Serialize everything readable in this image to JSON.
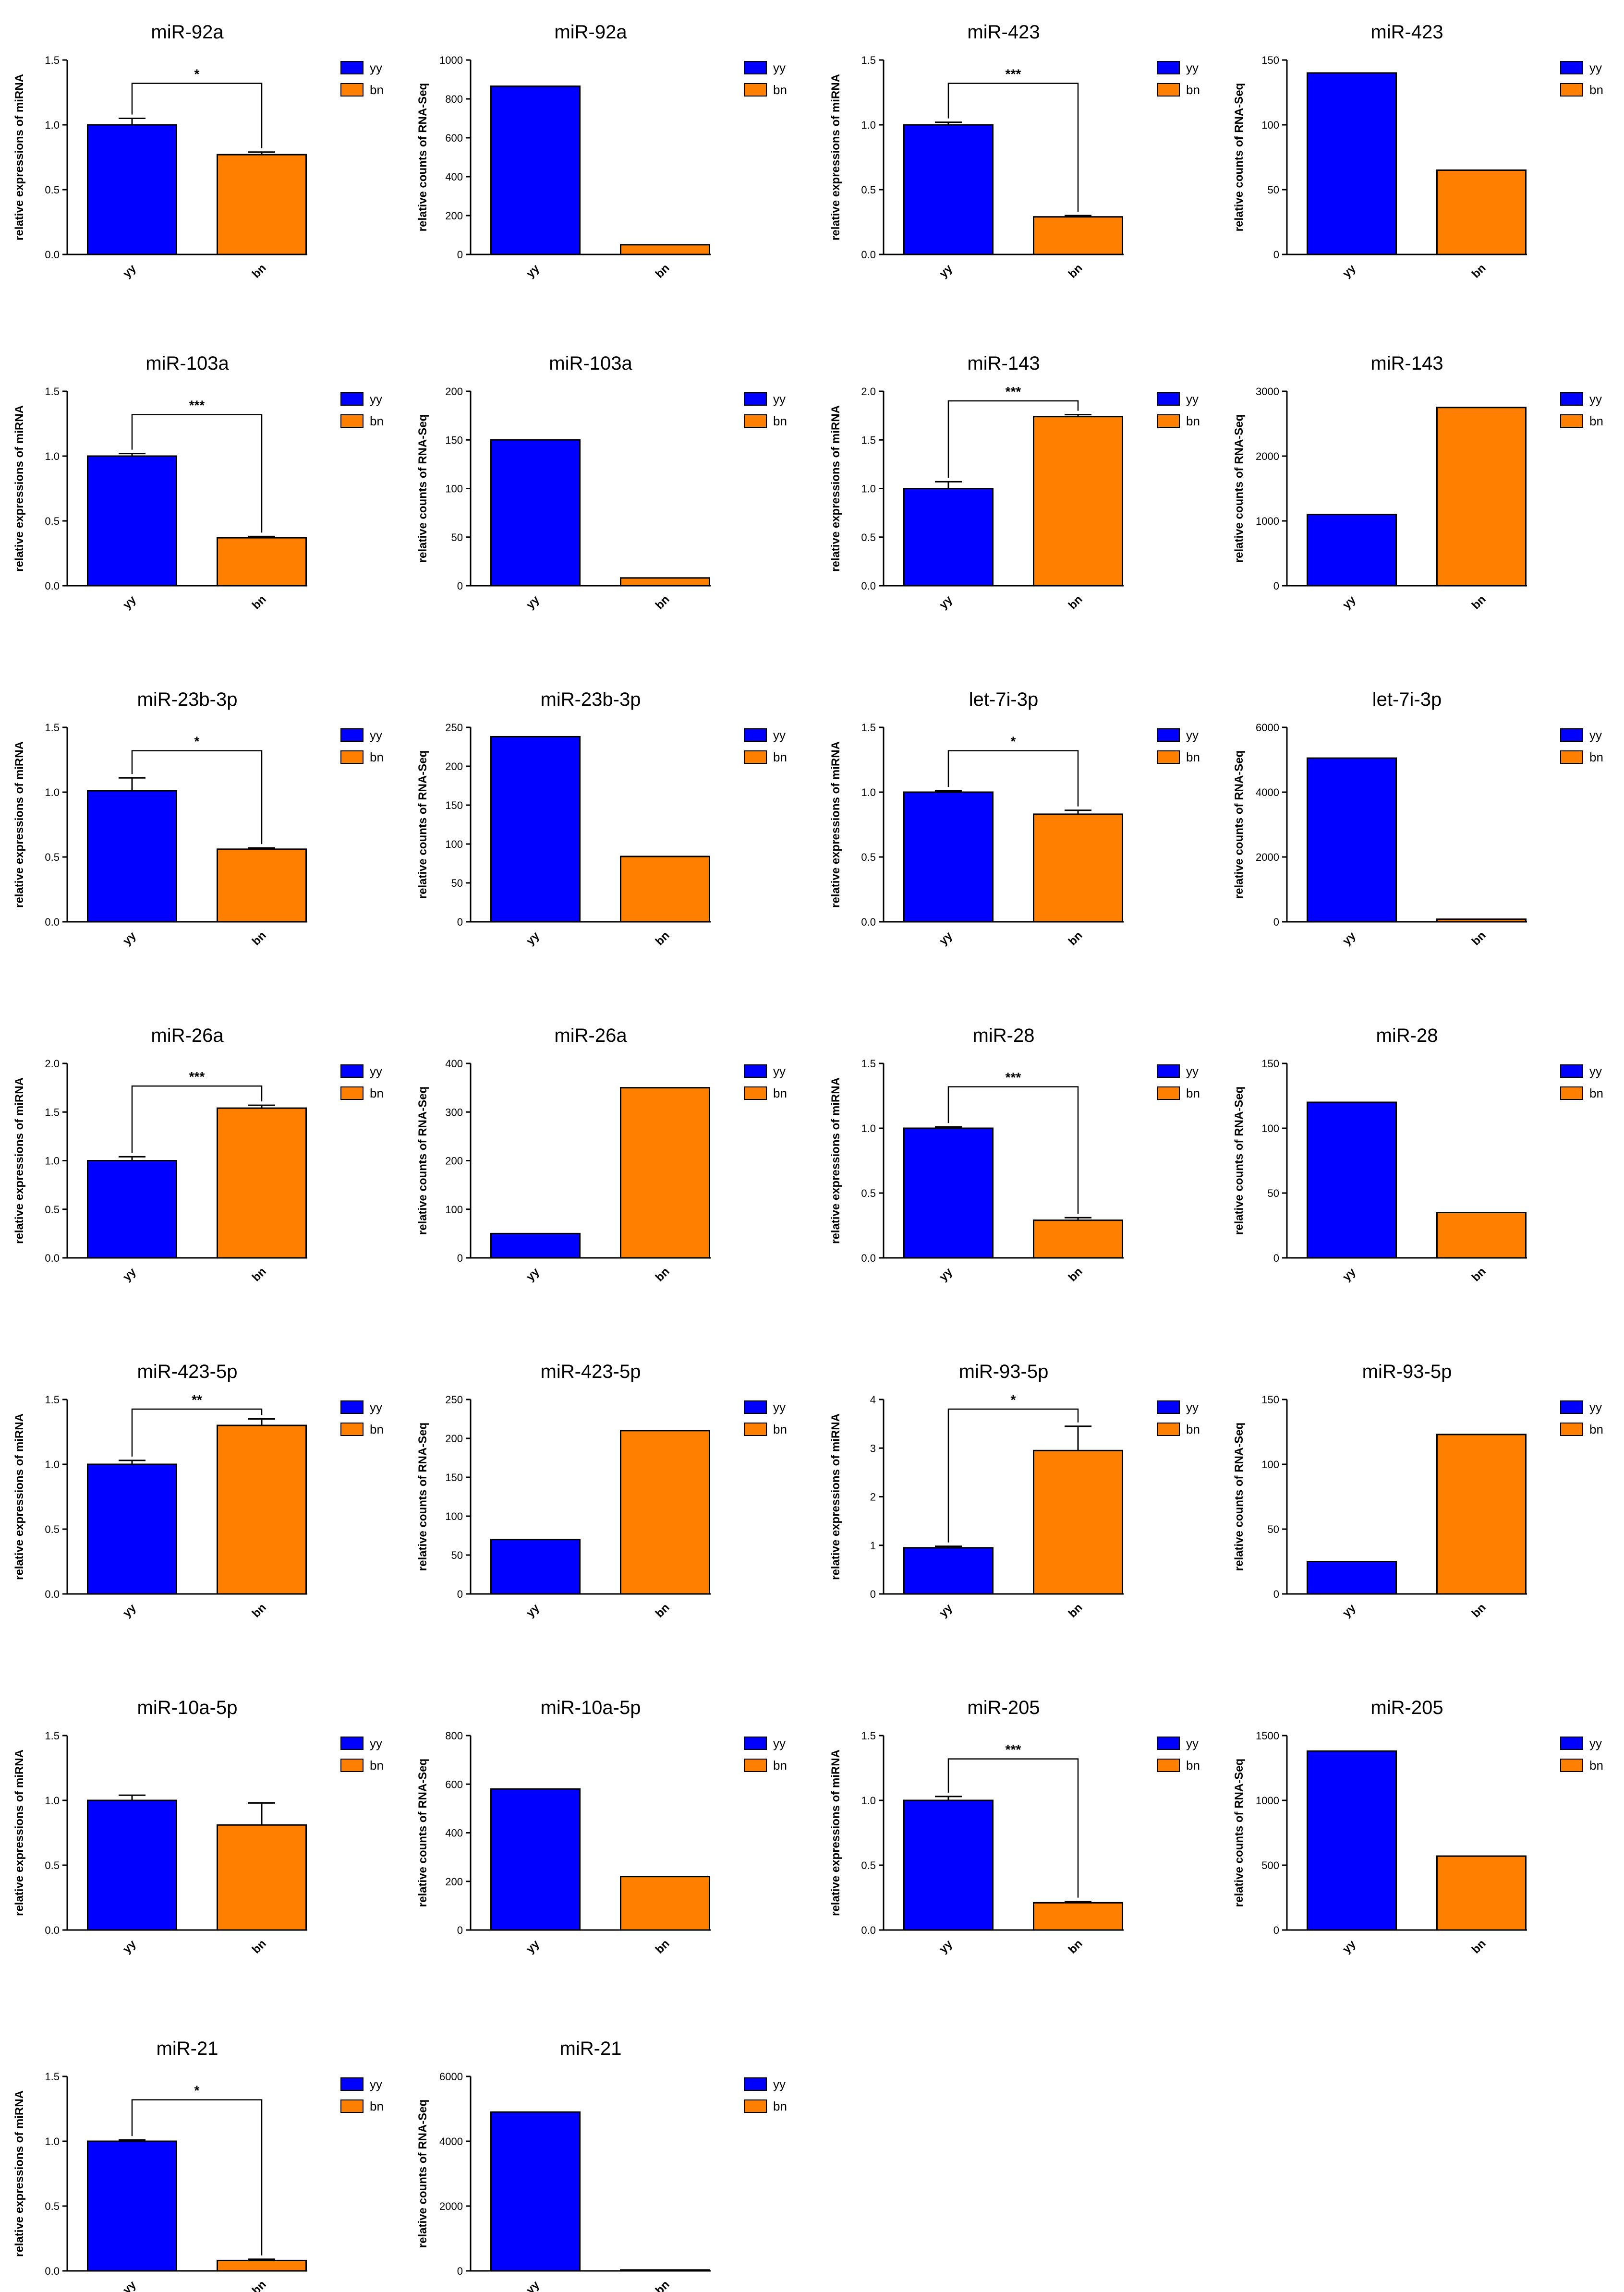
{
  "groups": [
    "yy",
    "bn"
  ],
  "colors": {
    "yy": "#0000ff",
    "bn": "#ff8000"
  },
  "chart_data": [
    {
      "type": "bar",
      "title": "miR-92a",
      "ylabel": "relative expressions of miRNA",
      "categories": [
        "yy",
        "bn"
      ],
      "values": [
        1.0,
        0.77
      ],
      "errors": [
        0.05,
        0.02
      ],
      "significance": "*",
      "ylim": [
        0,
        1.5
      ],
      "yticks": [
        "0.0",
        "0.5",
        "1.0",
        "1.5"
      ],
      "legend": [
        "yy",
        "bn"
      ]
    },
    {
      "type": "bar",
      "title": "miR-92a",
      "ylabel": "relative counts of RNA-Seq",
      "categories": [
        "yy",
        "bn"
      ],
      "values": [
        865,
        50
      ],
      "errors": [
        0,
        0
      ],
      "significance": "",
      "ylim": [
        0,
        1000
      ],
      "yticks": [
        "0",
        "200",
        "400",
        "600",
        "800",
        "1000"
      ],
      "legend": [
        "yy",
        "bn"
      ]
    },
    {
      "type": "bar",
      "title": "miR-423",
      "ylabel": "relative expressions of miRNA",
      "categories": [
        "yy",
        "bn"
      ],
      "values": [
        1.0,
        0.29
      ],
      "errors": [
        0.02,
        0.01
      ],
      "significance": "***",
      "ylim": [
        0,
        1.5
      ],
      "yticks": [
        "0.0",
        "0.5",
        "1.0",
        "1.5"
      ],
      "legend": [
        "yy",
        "bn"
      ]
    },
    {
      "type": "bar",
      "title": "miR-423",
      "ylabel": "relative counts of RNA-Seq",
      "categories": [
        "yy",
        "bn"
      ],
      "values": [
        140,
        65
      ],
      "errors": [
        0,
        0
      ],
      "significance": "",
      "ylim": [
        0,
        150
      ],
      "yticks": [
        "0",
        "50",
        "100",
        "150"
      ],
      "legend": [
        "yy",
        "bn"
      ]
    },
    {
      "type": "bar",
      "title": "miR-103a",
      "ylabel": "relative expressions of miRNA",
      "categories": [
        "yy",
        "bn"
      ],
      "values": [
        1.0,
        0.37
      ],
      "errors": [
        0.02,
        0.01
      ],
      "significance": "***",
      "ylim": [
        0,
        1.5
      ],
      "yticks": [
        "0.0",
        "0.5",
        "1.0",
        "1.5"
      ],
      "legend": [
        "yy",
        "bn"
      ]
    },
    {
      "type": "bar",
      "title": "miR-103a",
      "ylabel": "relative counts of RNA-Seq",
      "categories": [
        "yy",
        "bn"
      ],
      "values": [
        150,
        8
      ],
      "errors": [
        0,
        0
      ],
      "significance": "",
      "ylim": [
        0,
        200
      ],
      "yticks": [
        "0",
        "50",
        "100",
        "150",
        "200"
      ],
      "legend": [
        "yy",
        "bn"
      ]
    },
    {
      "type": "bar",
      "title": "miR-143",
      "ylabel": "relative expressions of miRNA",
      "categories": [
        "yy",
        "bn"
      ],
      "values": [
        1.0,
        1.74
      ],
      "errors": [
        0.07,
        0.02
      ],
      "significance": "***",
      "ylim": [
        0,
        2.0
      ],
      "yticks": [
        "0.0",
        "0.5",
        "1.0",
        "1.5",
        "2.0"
      ],
      "legend": [
        "yy",
        "bn"
      ]
    },
    {
      "type": "bar",
      "title": "miR-143",
      "ylabel": "relative counts of RNA-Seq",
      "categories": [
        "yy",
        "bn"
      ],
      "values": [
        1100,
        2750
      ],
      "errors": [
        0,
        0
      ],
      "significance": "",
      "ylim": [
        0,
        3000
      ],
      "yticks": [
        "0",
        "1000",
        "2000",
        "3000"
      ],
      "legend": [
        "yy",
        "bn"
      ]
    },
    {
      "type": "bar",
      "title": "miR-23b-3p",
      "ylabel": "relative expressions of miRNA",
      "categories": [
        "yy",
        "bn"
      ],
      "values": [
        1.01,
        0.56
      ],
      "errors": [
        0.1,
        0.01
      ],
      "significance": "*",
      "ylim": [
        0,
        1.5
      ],
      "yticks": [
        "0.0",
        "0.5",
        "1.0",
        "1.5"
      ],
      "legend": [
        "yy",
        "bn"
      ]
    },
    {
      "type": "bar",
      "title": "miR-23b-3p",
      "ylabel": "relative counts of RNA-Seq",
      "categories": [
        "yy",
        "bn"
      ],
      "values": [
        238,
        84
      ],
      "errors": [
        0,
        0
      ],
      "significance": "",
      "ylim": [
        0,
        250
      ],
      "yticks": [
        "0",
        "50",
        "100",
        "150",
        "200",
        "250"
      ],
      "legend": [
        "yy",
        "bn"
      ]
    },
    {
      "type": "bar",
      "title": "let-7i-3p",
      "ylabel": "relative expressions of miRNA",
      "categories": [
        "yy",
        "bn"
      ],
      "values": [
        1.0,
        0.83
      ],
      "errors": [
        0.01,
        0.03
      ],
      "significance": "*",
      "ylim": [
        0,
        1.5
      ],
      "yticks": [
        "0.0",
        "0.5",
        "1.0",
        "1.5"
      ],
      "legend": [
        "yy",
        "bn"
      ]
    },
    {
      "type": "bar",
      "title": "let-7i-3p",
      "ylabel": "relative counts of RNA-Seq",
      "categories": [
        "yy",
        "bn"
      ],
      "values": [
        5050,
        80
      ],
      "errors": [
        0,
        0
      ],
      "significance": "",
      "ylim": [
        0,
        6000
      ],
      "yticks": [
        "0",
        "2000",
        "4000",
        "6000"
      ],
      "legend": [
        "yy",
        "bn"
      ]
    },
    {
      "type": "bar",
      "title": "miR-26a",
      "ylabel": "relative expressions of miRNA",
      "categories": [
        "yy",
        "bn"
      ],
      "values": [
        1.0,
        1.54
      ],
      "errors": [
        0.04,
        0.03
      ],
      "significance": "***",
      "ylim": [
        0,
        2.0
      ],
      "yticks": [
        "0.0",
        "0.5",
        "1.0",
        "1.5",
        "2.0"
      ],
      "legend": [
        "yy",
        "bn"
      ]
    },
    {
      "type": "bar",
      "title": "miR-26a",
      "ylabel": "relative counts of RNA-Seq",
      "categories": [
        "yy",
        "bn"
      ],
      "values": [
        50,
        350
      ],
      "errors": [
        0,
        0
      ],
      "significance": "",
      "ylim": [
        0,
        400
      ],
      "yticks": [
        "0",
        "100",
        "200",
        "300",
        "400"
      ],
      "legend": [
        "yy",
        "bn"
      ]
    },
    {
      "type": "bar",
      "title": "miR-28",
      "ylabel": "relative expressions of miRNA",
      "categories": [
        "yy",
        "bn"
      ],
      "values": [
        1.0,
        0.29
      ],
      "errors": [
        0.01,
        0.02
      ],
      "significance": "***",
      "ylim": [
        0,
        1.5
      ],
      "yticks": [
        "0.0",
        "0.5",
        "1.0",
        "1.5"
      ],
      "legend": [
        "yy",
        "bn"
      ]
    },
    {
      "type": "bar",
      "title": "miR-28",
      "ylabel": "relative counts of RNA-Seq",
      "categories": [
        "yy",
        "bn"
      ],
      "values": [
        120,
        35
      ],
      "errors": [
        0,
        0
      ],
      "significance": "",
      "ylim": [
        0,
        150
      ],
      "yticks": [
        "0",
        "50",
        "100",
        "150"
      ],
      "legend": [
        "yy",
        "bn"
      ]
    },
    {
      "type": "bar",
      "title": "miR-423-5p",
      "ylabel": "relative expressions of miRNA",
      "categories": [
        "yy",
        "bn"
      ],
      "values": [
        1.0,
        1.3
      ],
      "errors": [
        0.03,
        0.05
      ],
      "significance": "**",
      "ylim": [
        0,
        1.5
      ],
      "yticks": [
        "0.0",
        "0.5",
        "1.0",
        "1.5"
      ],
      "legend": [
        "yy",
        "bn"
      ]
    },
    {
      "type": "bar",
      "title": "miR-423-5p",
      "ylabel": "relative counts of RNA-Seq",
      "categories": [
        "yy",
        "bn"
      ],
      "values": [
        70,
        210
      ],
      "errors": [
        0,
        0
      ],
      "significance": "",
      "ylim": [
        0,
        250
      ],
      "yticks": [
        "0",
        "50",
        "100",
        "150",
        "200",
        "250"
      ],
      "legend": [
        "yy",
        "bn"
      ]
    },
    {
      "type": "bar",
      "title": "miR-93-5p",
      "ylabel": "relative expressions of miRNA",
      "categories": [
        "yy",
        "bn"
      ],
      "values": [
        0.95,
        2.95
      ],
      "errors": [
        0.03,
        0.5
      ],
      "significance": "*",
      "ylim": [
        0,
        4
      ],
      "yticks": [
        "0",
        "1",
        "2",
        "3",
        "4"
      ],
      "legend": [
        "yy",
        "bn"
      ]
    },
    {
      "type": "bar",
      "title": "miR-93-5p",
      "ylabel": "relative counts of RNA-Seq",
      "categories": [
        "yy",
        "bn"
      ],
      "values": [
        25,
        123
      ],
      "errors": [
        0,
        0
      ],
      "significance": "",
      "ylim": [
        0,
        150
      ],
      "yticks": [
        "0",
        "50",
        "100",
        "150"
      ],
      "legend": [
        "yy",
        "bn"
      ]
    },
    {
      "type": "bar",
      "title": "miR-10a-5p",
      "ylabel": "relative expressions of miRNA",
      "categories": [
        "yy",
        "bn"
      ],
      "values": [
        1.0,
        0.81
      ],
      "errors": [
        0.04,
        0.17
      ],
      "significance": "",
      "ylim": [
        0,
        1.5
      ],
      "yticks": [
        "0.0",
        "0.5",
        "1.0",
        "1.5"
      ],
      "legend": [
        "yy",
        "bn"
      ]
    },
    {
      "type": "bar",
      "title": "miR-10a-5p",
      "ylabel": "relative counts of RNA-Seq",
      "categories": [
        "yy",
        "bn"
      ],
      "values": [
        580,
        220
      ],
      "errors": [
        0,
        0
      ],
      "significance": "",
      "ylim": [
        0,
        800
      ],
      "yticks": [
        "0",
        "200",
        "400",
        "600",
        "800"
      ],
      "legend": [
        "yy",
        "bn"
      ]
    },
    {
      "type": "bar",
      "title": "miR-205",
      "ylabel": "relative expressions of miRNA",
      "categories": [
        "yy",
        "bn"
      ],
      "values": [
        1.0,
        0.21
      ],
      "errors": [
        0.03,
        0.01
      ],
      "significance": "***",
      "ylim": [
        0,
        1.5
      ],
      "yticks": [
        "0.0",
        "0.5",
        "1.0",
        "1.5"
      ],
      "legend": [
        "yy",
        "bn"
      ]
    },
    {
      "type": "bar",
      "title": "miR-205",
      "ylabel": "relative counts of RNA-Seq",
      "categories": [
        "yy",
        "bn"
      ],
      "values": [
        1380,
        570
      ],
      "errors": [
        0,
        0
      ],
      "significance": "",
      "ylim": [
        0,
        1500
      ],
      "yticks": [
        "0",
        "500",
        "1000",
        "1500"
      ],
      "legend": [
        "yy",
        "bn"
      ]
    },
    {
      "type": "bar",
      "title": "miR-21",
      "ylabel": "relative expressions of miRNA",
      "categories": [
        "yy",
        "bn"
      ],
      "values": [
        1.0,
        0.08
      ],
      "errors": [
        0.01,
        0.01
      ],
      "significance": "*",
      "ylim": [
        0,
        1.5
      ],
      "yticks": [
        "0.0",
        "0.5",
        "1.0",
        "1.5"
      ],
      "legend": [
        "yy",
        "bn"
      ]
    },
    {
      "type": "bar",
      "title": "miR-21",
      "ylabel": "relative counts of RNA-Seq",
      "categories": [
        "yy",
        "bn"
      ],
      "values": [
        4900,
        30
      ],
      "errors": [
        0,
        0
      ],
      "significance": "",
      "ylim": [
        0,
        6000
      ],
      "yticks": [
        "0",
        "2000",
        "4000",
        "6000"
      ],
      "legend": [
        "yy",
        "bn"
      ]
    }
  ]
}
